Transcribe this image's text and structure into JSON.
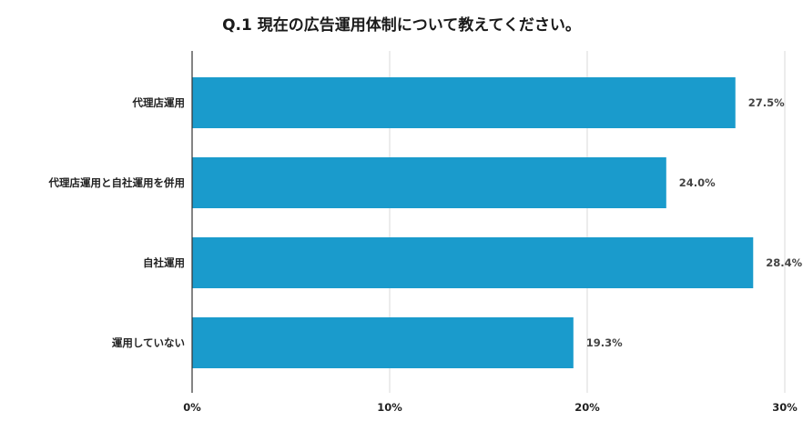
{
  "chart_data": {
    "type": "bar",
    "orientation": "horizontal",
    "title": "Q.1 現在の広告運用体制について教えてください。",
    "categories": [
      "代理店運用",
      "代理店運用と自社運用を併用",
      "自社運用",
      "運用していない"
    ],
    "values": [
      27.5,
      24.0,
      28.4,
      19.3
    ],
    "value_labels": [
      "27.5%",
      "24.0%",
      "28.4%",
      "19.3%"
    ],
    "xlim": [
      0,
      30
    ],
    "x_ticks": [
      0,
      10,
      20,
      30
    ],
    "x_tick_labels": [
      "0%",
      "10%",
      "20%",
      "30%"
    ],
    "grid": true,
    "bar_color": "#1a9bcc"
  }
}
